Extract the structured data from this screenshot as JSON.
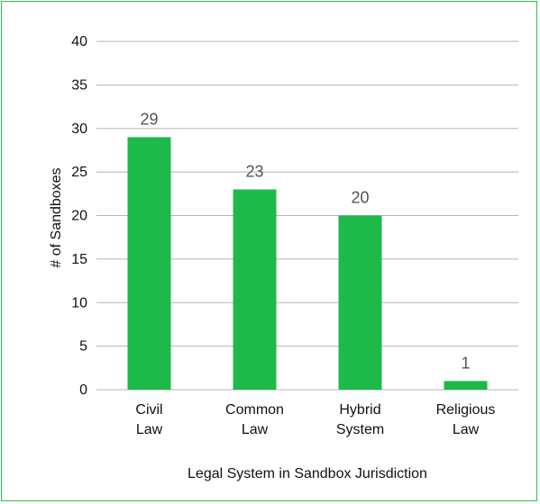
{
  "chart_data": {
    "type": "bar",
    "title": "",
    "categories": [
      [
        "Civil",
        "Law"
      ],
      [
        "Common",
        "Law"
      ],
      [
        "Hybrid",
        "System"
      ],
      [
        "Religious",
        "Law"
      ]
    ],
    "values": [
      29,
      23,
      20,
      1
    ],
    "data_labels": [
      "29",
      "23",
      "20",
      "1"
    ],
    "xlabel": "Legal System in Sandbox Jurisdiction",
    "ylabel": "# of Sandboxes",
    "ylim": [
      0,
      40
    ],
    "yticks": [
      0,
      5,
      10,
      15,
      20,
      25,
      30,
      35,
      40
    ],
    "ytick_labels": [
      "0",
      "5",
      "10",
      "15",
      "20",
      "25",
      "30",
      "35",
      "40"
    ],
    "grid": true,
    "legend": "none",
    "bar_color": "#1db94a",
    "frame_color": "#2fbf4f",
    "grid_color": "#b5b5b5"
  }
}
